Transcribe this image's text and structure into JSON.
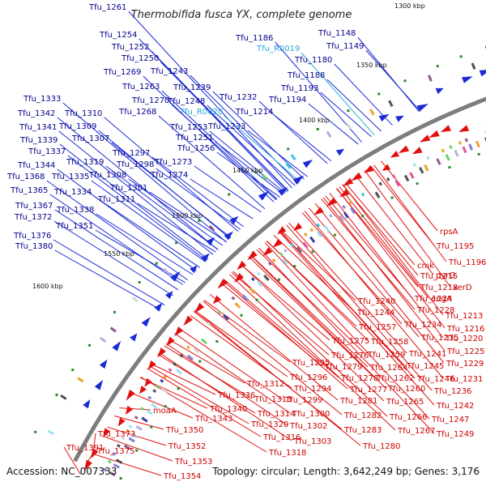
{
  "title": "Thermobifida fusca YX, complete genome",
  "footer": {
    "accession": "Accession: NC_007333",
    "summary": "Topology: circular; Length: 3,642,249 bp; Genes: 3,176"
  },
  "colors": {
    "forward_arrow": "#1a2bd6",
    "reverse_arrow": "#e01010",
    "forward_label": "#00008b",
    "reverse_label": "#cc0000",
    "rna_label": "#28a8d8",
    "backbone": "#7d7d7d",
    "gc_dot": "#2a8a2a"
  },
  "scale_ticks": [
    "1300 kbp",
    "1350 kbp",
    "1400 kbp",
    "1450 kbp",
    "1500 kbp",
    "1550 kbp",
    "1600 kbp"
  ],
  "forward_labels": [
    "Tfu_1261",
    "Tfu_1254",
    "Tfu_1252",
    "Tfu_1250",
    "Tfu_1269",
    "Tfu_1243",
    "Tfu_1263",
    "Tfu_1239",
    "Tfu_1270",
    "Tfu_1248",
    "Tfu_1268",
    "Tfu_R0020",
    "Tfu_1232",
    "Tfu_1253",
    "Tfu_1233",
    "Tfu_1251",
    "Tfu_1256",
    "Tfu_1186",
    "Tfu_R0019",
    "Tfu_1148",
    "Tfu_1149",
    "Tfu_1180",
    "Tfu_1188",
    "Tfu_1193",
    "Tfu_1194",
    "Tfu_1214",
    "Tfu_1333",
    "Tfu_1342",
    "Tfu_1310",
    "Tfu_1309",
    "Tfu_1341",
    "Tfu_1307",
    "Tfu_1339",
    "Tfu_1337",
    "Tfu_1297",
    "Tfu_1344",
    "Tfu_1319",
    "Tfu_1298",
    "Tfu_1273",
    "Tfu_1368",
    "Tfu_1335",
    "Tfu_1308",
    "Tfu_1274",
    "Tfu_1365",
    "Tfu_1334",
    "Tfu_1301",
    "Tfu_1311",
    "Tfu_1367",
    "Tfu_1338",
    "Tfu_1372",
    "Tfu_1351",
    "Tfu_1376",
    "Tfu_1380"
  ],
  "reverse_labels": [
    "rpsA",
    "Tfu_1195",
    "Tfu_1196",
    "cmk",
    "Tfu_1215",
    "pyrG",
    "Tfu_1218",
    "xerD",
    "engA",
    "Tfu_1240",
    "Tfu_1224",
    "Tfu_1244",
    "Tfu_1228",
    "Tfu_1213",
    "Tfu_1234",
    "Tfu_1216",
    "Tfu_1257",
    "Tfu_1235",
    "Tfu_1220",
    "Tfu_1275",
    "Tfu_1258",
    "Tfu_1241",
    "Tfu_1225",
    "Tfu_1276",
    "Tfu_1259",
    "Tfu_1245",
    "Tfu_1229",
    "Tfu_1295",
    "Tfu_1279",
    "Tfu_1264",
    "Tfu_1246",
    "Tfu_1296",
    "Tfu_1278",
    "Tfu_1262",
    "Tfu_1231",
    "Tfu_1294",
    "Tfu_1277",
    "Tfu_1260",
    "Tfu_1236",
    "Tfu_1312",
    "Tfu_1299",
    "Tfu_1281",
    "Tfu_1265",
    "Tfu_1336",
    "Tfu_1313",
    "Tfu_1242",
    "Tfu_1340",
    "Tfu_1314",
    "Tfu_1300",
    "Tfu_1282",
    "Tfu_1266",
    "moaA",
    "Tfu_1343",
    "Tfu_1320",
    "Tfu_1302",
    "Tfu_1247",
    "Tfu_1373",
    "Tfu_1350",
    "Tfu_1283",
    "Tfu_1267",
    "Tfu_1316",
    "Tfu_1303",
    "Tfu_1249",
    "Tfu_1352",
    "Tfu_1375",
    "Tfu_1318",
    "Tfu_1280",
    "Tfu_1391",
    "Tfu_1353",
    "Tfu_1354"
  ]
}
